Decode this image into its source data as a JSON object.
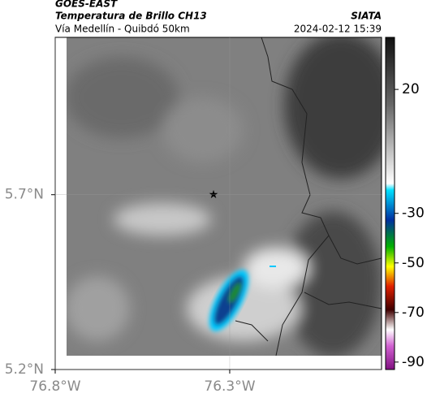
{
  "header": {
    "satellite": "GOES-EAST",
    "product": "Temperatura de Brillo CH13",
    "location": "Vía Medellín - Quibdó 50km",
    "agency": "SIATA",
    "datetime": "2024-02-12 15:39"
  },
  "map": {
    "latlim": [
      5.2,
      6.15
    ],
    "lonlim": [
      -76.8,
      -75.865
    ],
    "lat_ticks": [
      {
        "value": 5.7,
        "label": "5.7°N"
      },
      {
        "value": 5.2,
        "label": "5.2°N"
      }
    ],
    "lon_ticks": [
      {
        "value": -76.8,
        "label": "76.8°W"
      },
      {
        "value": -76.3,
        "label": "76.3°W"
      }
    ]
  },
  "colorbar": {
    "range": [
      41,
      -93
    ],
    "ticks": [
      20,
      -30,
      -50,
      -70,
      -90
    ]
  }
}
